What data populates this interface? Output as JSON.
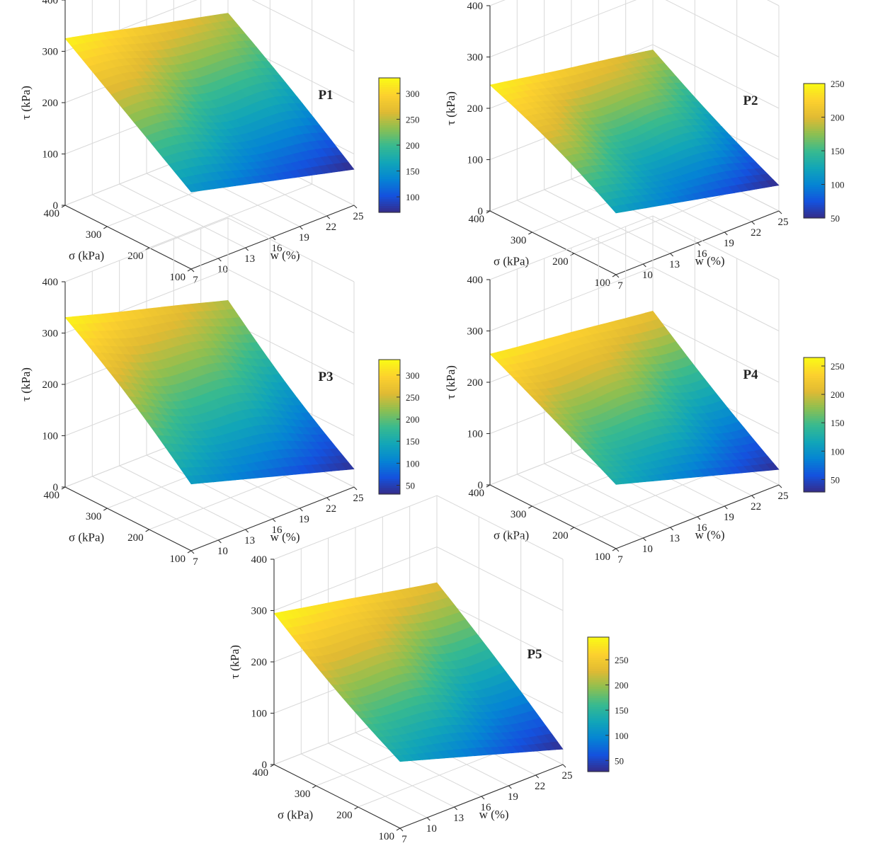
{
  "chart_data": [
    {
      "type": "surface3d",
      "title": "P1",
      "xlabel": "w (%)",
      "ylabel": "σ (kPa)",
      "zlabel": "τ (kPa)",
      "x_ticks": [
        7,
        10,
        13,
        16,
        19,
        22,
        25
      ],
      "y_ticks": [
        100,
        200,
        300,
        400
      ],
      "z_ticks": [
        0,
        100,
        200,
        300,
        400
      ],
      "xlim": [
        7,
        25
      ],
      "ylim": [
        100,
        400
      ],
      "zlim": [
        0,
        400
      ],
      "corner_values": {
        "w7_s400": 325,
        "w25_s400": 250,
        "w7_s100": 150,
        "w25_s100": 70
      },
      "colorbar": {
        "min": 70,
        "max": 330,
        "ticks": [
          100,
          150,
          200,
          250,
          300
        ]
      }
    },
    {
      "type": "surface3d",
      "title": "P2",
      "xlabel": "w (%)",
      "ylabel": "σ (kPa)",
      "zlabel": "τ (kPa)",
      "x_ticks": [
        7,
        10,
        13,
        16,
        19,
        22,
        25
      ],
      "y_ticks": [
        100,
        200,
        300,
        400
      ],
      "z_ticks": [
        0,
        100,
        200,
        300,
        400
      ],
      "xlim": [
        7,
        25
      ],
      "ylim": [
        100,
        400
      ],
      "zlim": [
        0,
        400
      ],
      "corner_values": {
        "w7_s400": 245,
        "w25_s400": 190,
        "w7_s100": 120,
        "w25_s100": 50
      },
      "colorbar": {
        "min": 50,
        "max": 250,
        "ticks": [
          50,
          100,
          150,
          200,
          250
        ]
      }
    },
    {
      "type": "surface3d",
      "title": "P3",
      "xlabel": "w (%)",
      "ylabel": "σ (kPa)",
      "zlabel": "τ (kPa)",
      "x_ticks": [
        7,
        10,
        13,
        16,
        19,
        22,
        25
      ],
      "y_ticks": [
        100,
        200,
        300,
        400
      ],
      "z_ticks": [
        0,
        100,
        200,
        300,
        400
      ],
      "xlim": [
        7,
        25
      ],
      "ylim": [
        100,
        400
      ],
      "zlim": [
        0,
        400
      ],
      "corner_values": {
        "w7_s400": 330,
        "w25_s400": 240,
        "w7_s100": 130,
        "w25_s100": 35
      },
      "colorbar": {
        "min": 30,
        "max": 335,
        "ticks": [
          50,
          100,
          150,
          200,
          250,
          300
        ]
      }
    },
    {
      "type": "surface3d",
      "title": "P4",
      "xlabel": "w (%)",
      "ylabel": "σ (kPa)",
      "zlabel": "τ (kPa)",
      "x_ticks": [
        7,
        10,
        13,
        16,
        19,
        22,
        25
      ],
      "y_ticks": [
        100,
        200,
        300,
        400
      ],
      "z_ticks": [
        0,
        100,
        200,
        300,
        400
      ],
      "xlim": [
        7,
        25
      ],
      "ylim": [
        100,
        400
      ],
      "zlim": [
        0,
        400
      ],
      "corner_values": {
        "w7_s400": 255,
        "w25_s400": 215,
        "w7_s100": 125,
        "w25_s100": 30
      },
      "colorbar": {
        "min": 28,
        "max": 265,
        "ticks": [
          50,
          100,
          150,
          200,
          250
        ]
      }
    },
    {
      "type": "surface3d",
      "title": "P5",
      "xlabel": "w (%)",
      "ylabel": "σ (kPa)",
      "zlabel": "τ (kPa)",
      "x_ticks": [
        7,
        10,
        13,
        16,
        19,
        22,
        25
      ],
      "y_ticks": [
        100,
        200,
        300,
        400
      ],
      "z_ticks": [
        0,
        100,
        200,
        300,
        400
      ],
      "xlim": [
        7,
        25
      ],
      "ylim": [
        100,
        400
      ],
      "zlim": [
        0,
        400
      ],
      "corner_values": {
        "w7_s400": 295,
        "w25_s400": 230,
        "w7_s100": 130,
        "w25_s100": 30
      },
      "colorbar": {
        "min": 28,
        "max": 295,
        "ticks": [
          50,
          100,
          150,
          200,
          250
        ]
      }
    }
  ]
}
